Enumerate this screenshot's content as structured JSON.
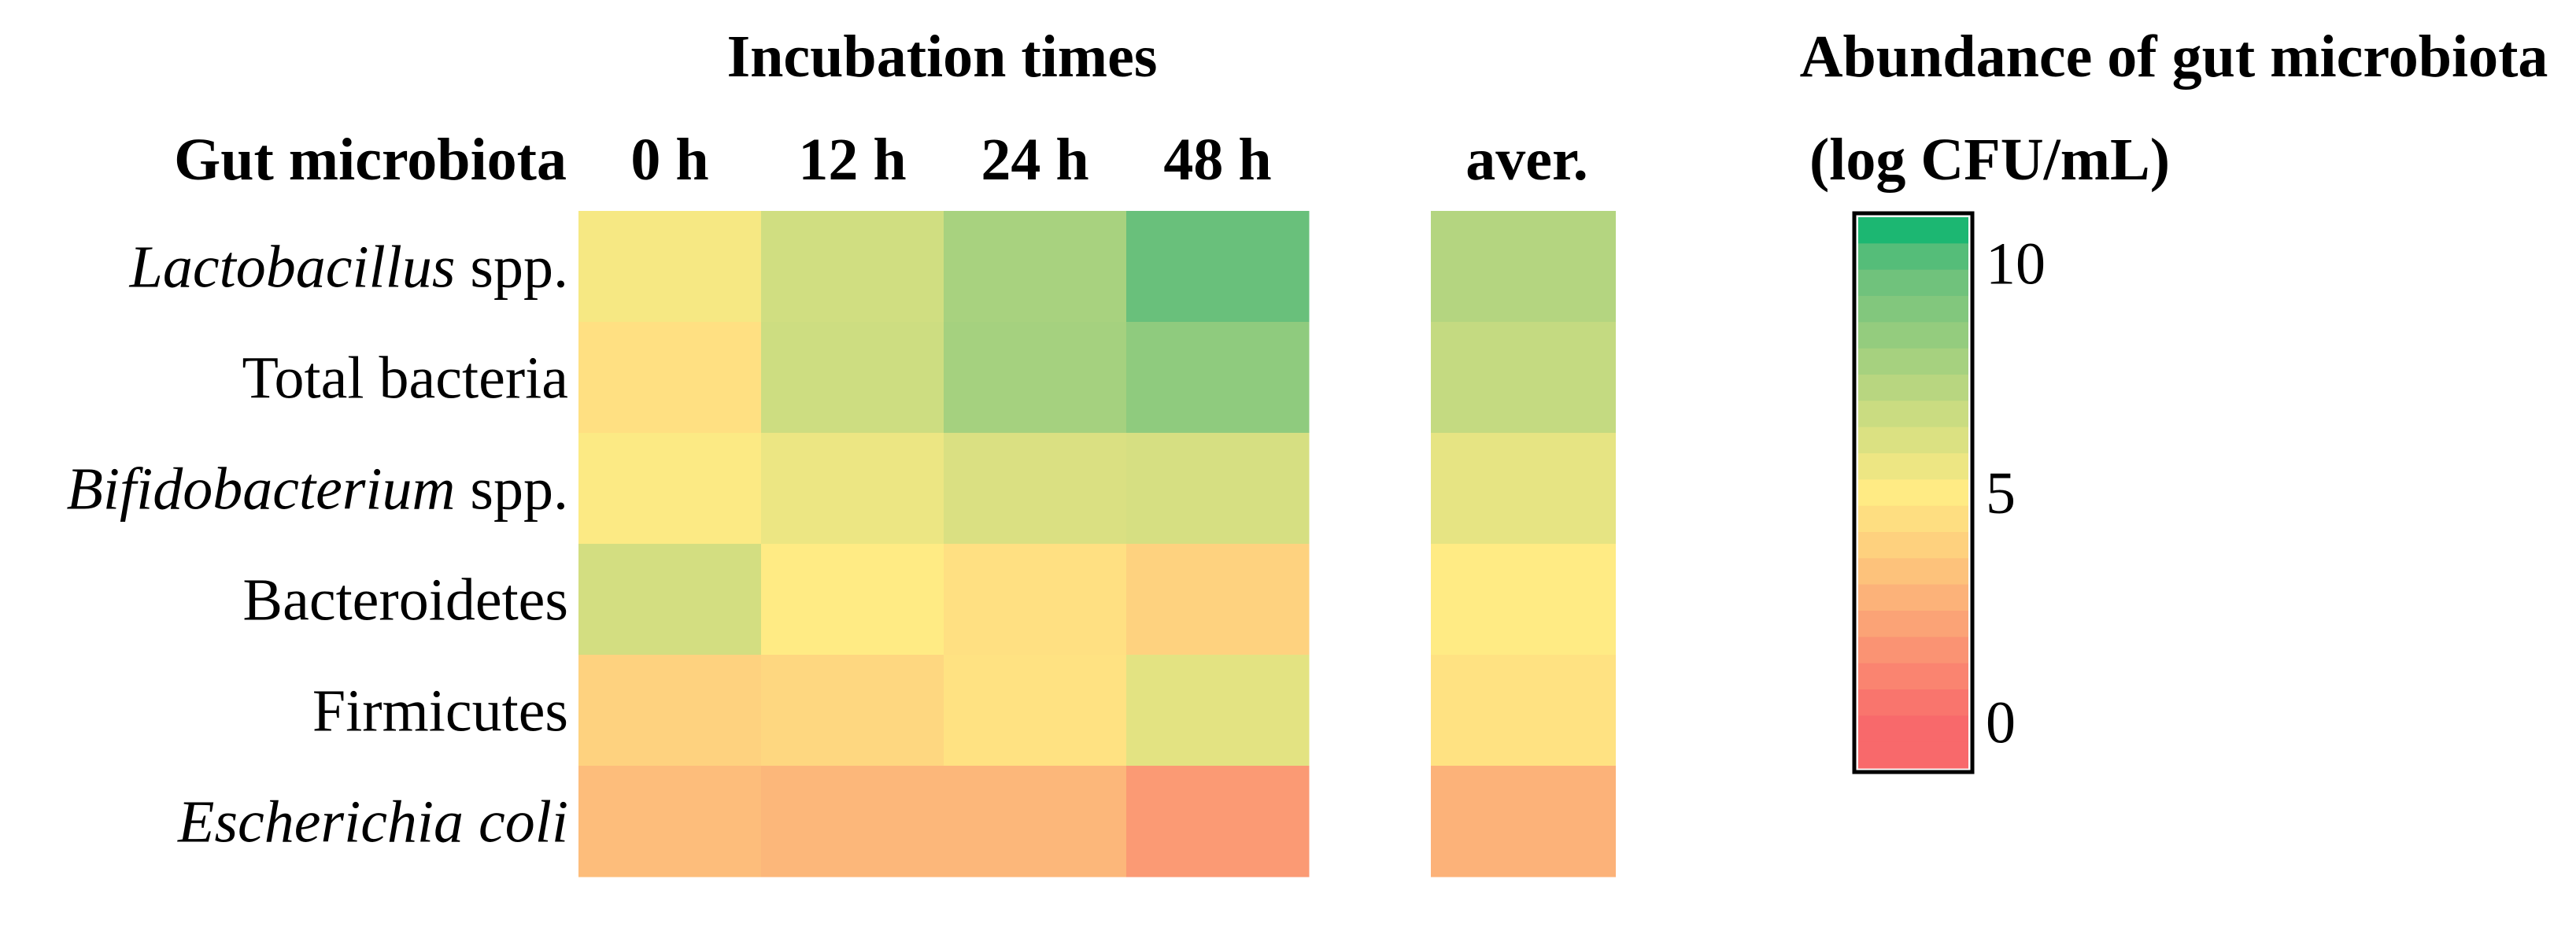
{
  "chart_data": {
    "type": "heatmap",
    "title": "Incubation times",
    "row_header": "Gut microbiota",
    "columns": [
      "0 h",
      "12 h",
      "24 h",
      "48 h"
    ],
    "average_column": "aver.",
    "rows": [
      {
        "name": "Lactobacillus",
        "suffix": "spp.",
        "italic": true,
        "values": [
          5.3,
          6.5,
          7.8,
          9.8
        ],
        "average": 7.4
      },
      {
        "name": "Total bacteria",
        "suffix": "",
        "italic": false,
        "values": [
          4.5,
          6.6,
          7.9,
          8.6
        ],
        "average": 6.9
      },
      {
        "name": "Bifidobacterium",
        "suffix": "spp.",
        "italic": true,
        "values": [
          5.1,
          5.6,
          6.2,
          6.3
        ],
        "average": 5.8
      },
      {
        "name": "Bacteroidetes",
        "suffix": "",
        "italic": false,
        "values": [
          6.4,
          5.0,
          4.5,
          3.9
        ],
        "average": 5.0
      },
      {
        "name": "Firmicutes",
        "suffix": "",
        "italic": false,
        "values": [
          3.9,
          4.1,
          4.6,
          5.9
        ],
        "average": 4.6
      },
      {
        "name": "Escherichia coli",
        "suffix": "",
        "italic": true,
        "values": [
          3.1,
          2.9,
          2.9,
          1.8
        ],
        "average": 2.7
      }
    ],
    "colorbar": {
      "title_line1": "Abundance of gut microbiota",
      "title_line2": "(log CFU/mL)",
      "range": [
        -1,
        11
      ],
      "ticks": [
        0,
        5,
        10
      ],
      "tick_labels": [
        "0",
        "5",
        "10"
      ],
      "levels": 21,
      "colors": [
        "#f8696b",
        "#fed57f",
        "#ffeb84",
        "#63be7b",
        "#00b46e"
      ]
    }
  }
}
